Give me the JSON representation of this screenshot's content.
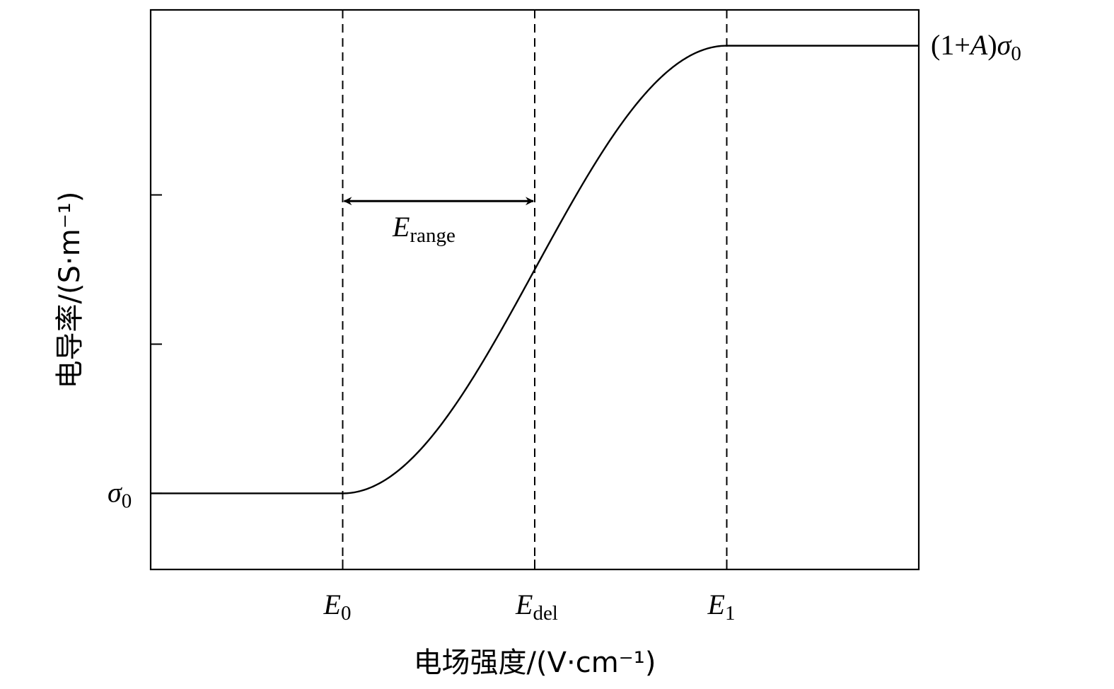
{
  "chart_data": {
    "type": "line",
    "xlabel": "电场强度/(V·cm⁻¹)",
    "ylabel": "电导率/(S·m⁻¹)",
    "x_ticks": [
      {
        "base": "E",
        "sub": "0"
      },
      {
        "base": "E",
        "sub": "del"
      },
      {
        "base": "E",
        "sub": "1"
      }
    ],
    "y_ticks": [
      {
        "base": "σ",
        "sub": "0"
      }
    ],
    "right_label": {
      "prefix": "(1+",
      "var": "A",
      "mid": ")",
      "base": "σ",
      "sub": "0"
    },
    "range_label": {
      "base": "E",
      "sub": "range"
    },
    "series": [
      {
        "x": [
          0,
          0.5,
          1.0,
          1.5,
          2.0,
          2.5,
          3.0,
          3.5,
          4.0,
          4.5,
          5.0,
          5.5,
          6.0,
          6.5,
          7.0,
          7.5,
          8.0
        ],
        "values": [
          0,
          0,
          0,
          0,
          0,
          0.02,
          0.13,
          0.31,
          0.5,
          0.69,
          0.87,
          0.98,
          1.0,
          1.0,
          1.0,
          1.0,
          1.0
        ]
      }
    ],
    "xlim": [
      0,
      8
    ],
    "ylim": [
      -0.17,
      1.08
    ],
    "x_tick_values": [
      2,
      4,
      6
    ],
    "y_tick_values": [
      0,
      0.3333,
      0.6667
    ],
    "dashed_lines_x": [
      2,
      4,
      6
    ],
    "range_arrow": {
      "from": 2,
      "to": 4,
      "y": 0.653
    },
    "grid": false
  }
}
